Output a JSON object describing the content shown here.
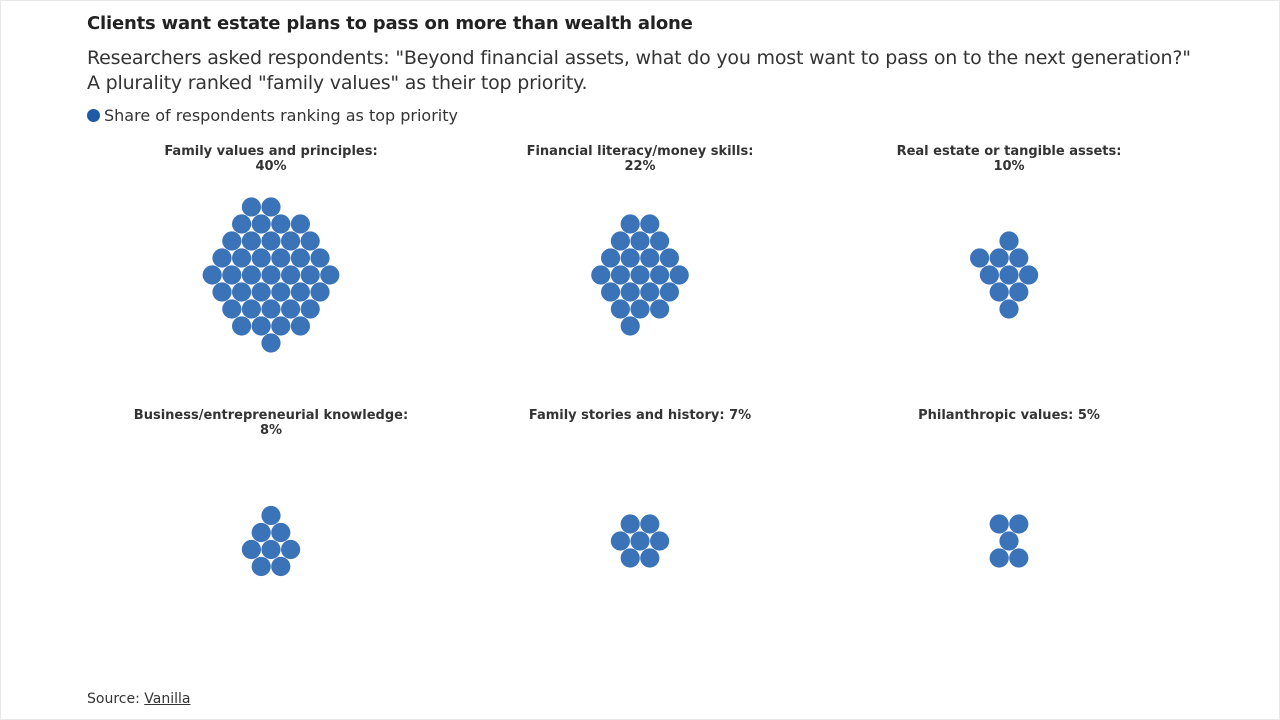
{
  "header": {
    "title": "Clients want estate plans to pass on more than wealth alone",
    "subtitle_line1": "Researchers asked respondents: \"Beyond financial assets, what do you most want to pass on to the next generation?\"",
    "subtitle_line2": "A plurality ranked \"family values\" as their top priority."
  },
  "legend": {
    "label": "Share of respondents ranking as top priority",
    "icon": "filled-circle"
  },
  "source": {
    "label": "Source: ",
    "link_text": "Vanilla"
  },
  "colors": {
    "dot": "#3b73b9",
    "legend_dot": "#1f5aa6",
    "text": "#333333",
    "title": "#222222"
  },
  "chart_data": {
    "type": "dot-grid",
    "unit": "percent",
    "one_dot_per_percentage_point": true,
    "series": [
      {
        "name": "Share of respondents ranking as top priority"
      }
    ],
    "panels": [
      {
        "label_lines": [
          "Family values and principles:",
          "40%"
        ],
        "category": "Family values and principles",
        "value": 40
      },
      {
        "label_lines": [
          "Financial literacy/money skills:",
          "22%"
        ],
        "category": "Financial literacy/money skills",
        "value": 22
      },
      {
        "label_lines": [
          "Real estate or tangible assets:",
          "10%"
        ],
        "category": "Real estate or tangible assets",
        "value": 10
      },
      {
        "label_lines": [
          "Business/entrepreneurial knowledge:",
          "8%"
        ],
        "category": "Business/entrepreneurial knowledge",
        "value": 8
      },
      {
        "label_lines": [
          "Family stories and history: 7%"
        ],
        "category": "Family stories and history",
        "value": 7
      },
      {
        "label_lines": [
          "Philanthropic values: 5%"
        ],
        "category": "Philanthropic values",
        "value": 5
      }
    ]
  }
}
